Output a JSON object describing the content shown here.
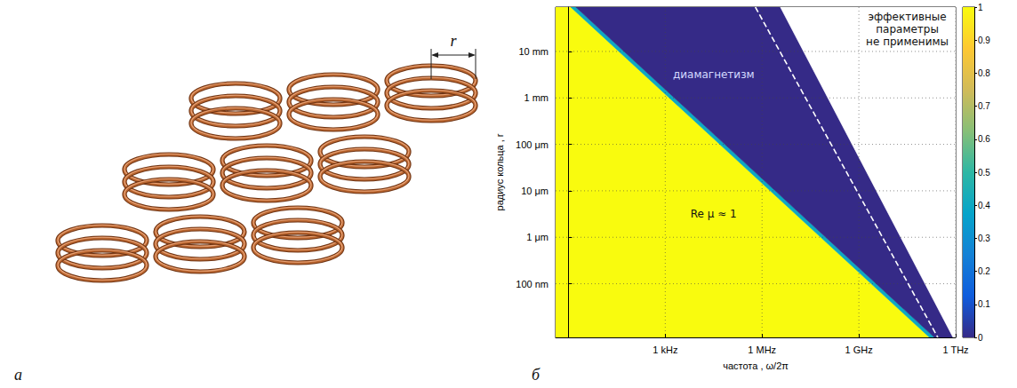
{
  "panel_labels": [
    "a",
    "б"
  ],
  "illustration": {
    "dimension_label": "r"
  },
  "chart_data": {
    "type": "region_map",
    "log": true,
    "grid": true,
    "x_label": "частота , ω/2π",
    "y_label": "радиус кольца , r",
    "xlim": [
      0.4,
      1000000000000
    ],
    "xticks": [
      {
        "value": 1000,
        "label": "1 kHz"
      },
      {
        "value": 1000000,
        "label": "1 MHz"
      },
      {
        "value": 1000000000,
        "label": "1 GHz"
      },
      {
        "value": 1000000000000,
        "label": "1 THz"
      }
    ],
    "ylim": [
      7e-09,
      0.09
    ],
    "yticks": [
      {
        "value": 1e-07,
        "label": "100 nm"
      },
      {
        "value": 1e-06,
        "label": "1 μm"
      },
      {
        "value": 1e-05,
        "label": "10 μm"
      },
      {
        "value": 0.0001,
        "label": "100 μm"
      },
      {
        "value": 0.001,
        "label": "1 mm"
      },
      {
        "value": 0.01,
        "label": "10 mm"
      }
    ],
    "regions": [
      {
        "label": "Re μ ≈ 1",
        "value": 1,
        "polygon": [
          [
            0.4,
            0.09
          ],
          [
            1.18,
            0.09
          ],
          [
            155000000000,
            7e-09
          ],
          [
            0.4,
            7e-09
          ]
        ]
      },
      {
        "value": 0.4,
        "polygon": [
          [
            1.18,
            0.09
          ],
          [
            1.7,
            0.09
          ],
          [
            220000000000,
            7e-09
          ],
          [
            155000000000,
            7e-09
          ]
        ]
      },
      {
        "label": "диамагнетизм",
        "value": 0,
        "polygon": [
          [
            1.7,
            0.09
          ],
          [
            3700000,
            0.09
          ],
          [
            830000000000,
            7e-09
          ],
          [
            220000000000,
            7e-09
          ]
        ]
      },
      {
        "label": "эффективные параметры не применимы",
        "polygon": [
          [
            3700000,
            0.09
          ],
          [
            1000000000000,
            0.09
          ],
          [
            1000000000000,
            7e-09
          ],
          [
            830000000000,
            7e-09
          ]
        ]
      }
    ],
    "boundary": {
      "line_style": "dashed",
      "color": "#ffffff",
      "x": [
        620000,
        280000000000
      ],
      "y": [
        0.09,
        7e-09
      ]
    },
    "colorbar": {
      "range": [
        0,
        1
      ],
      "ticks": [
        0,
        0.1,
        0.2,
        0.3,
        0.4,
        0.5,
        0.6,
        0.7,
        0.8,
        0.9,
        1
      ]
    }
  }
}
